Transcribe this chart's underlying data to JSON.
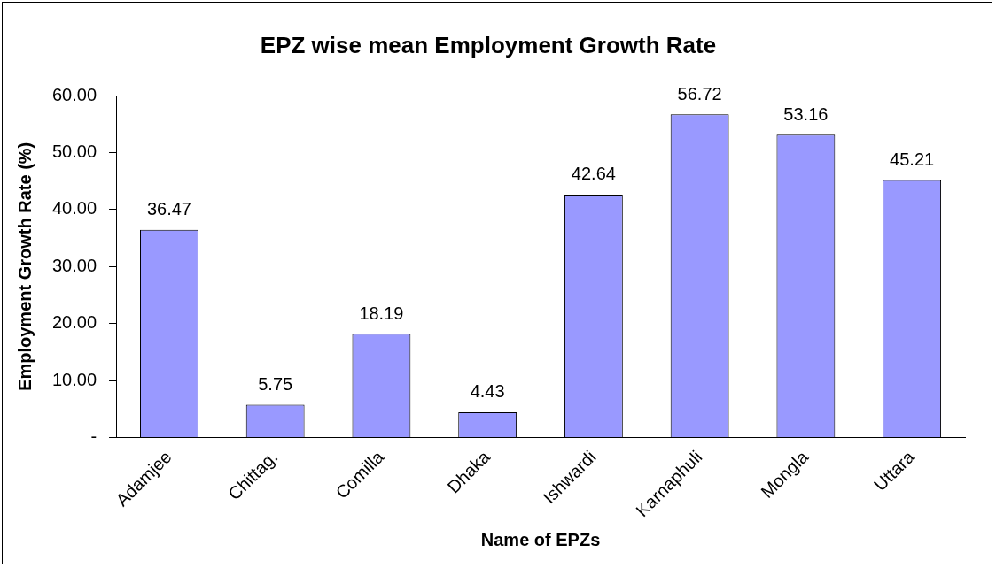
{
  "chart_data": {
    "type": "bar",
    "title": "EPZ wise mean Employment Growth Rate",
    "xlabel": "Name of EPZs",
    "ylabel": "Employment Growth Rate (%)",
    "categories": [
      "Adamjee",
      "Chittag.",
      "Comilla",
      "Dhaka",
      "Ishwardi",
      "Karnaphuli",
      "Mongla",
      "Uttara"
    ],
    "values": [
      36.47,
      5.75,
      18.19,
      4.43,
      42.64,
      56.72,
      53.16,
      45.21
    ],
    "color": "#9999ff",
    "ylim": [
      0,
      60
    ],
    "yticks": [
      {
        "value": 0,
        "label": "-"
      },
      {
        "value": 10,
        "label": "10.00"
      },
      {
        "value": 20,
        "label": "20.00"
      },
      {
        "value": 30,
        "label": "30.00"
      },
      {
        "value": 40,
        "label": "40.00"
      },
      {
        "value": 50,
        "label": "50.00"
      },
      {
        "value": 60,
        "label": "60.00"
      }
    ],
    "data_labels": true,
    "grid": false,
    "legend": false
  }
}
